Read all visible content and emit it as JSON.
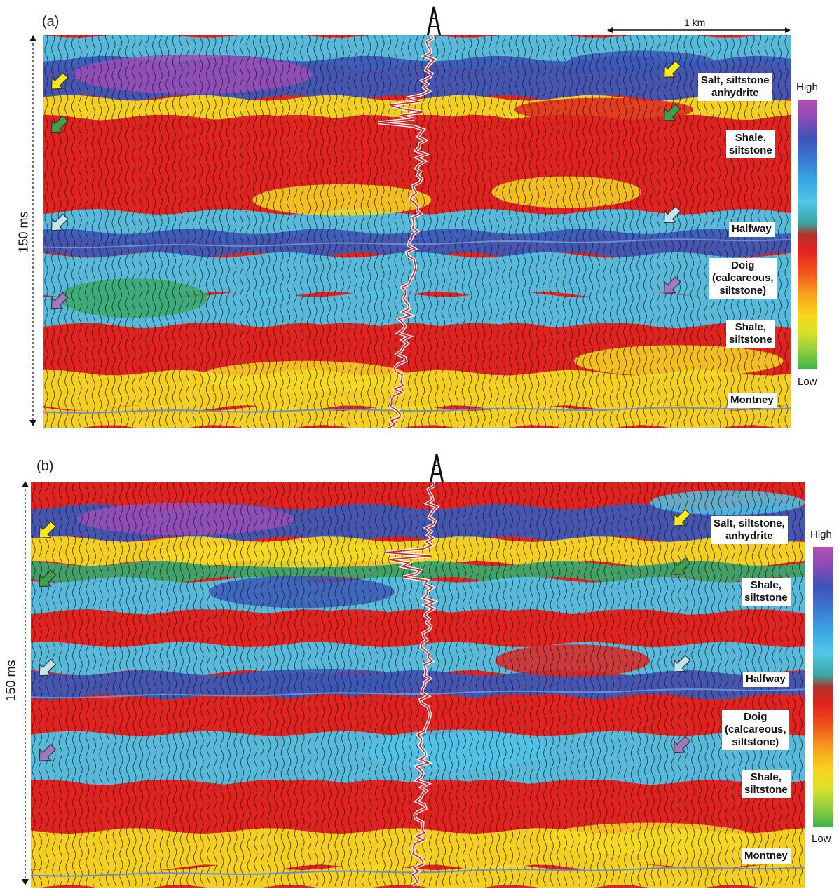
{
  "panels": [
    {
      "label": "(a)",
      "time_label": "150 ms",
      "scale_label": "1 km",
      "formations": [
        {
          "id": "salt",
          "text": "Salt, siltstone\nanhydrite"
        },
        {
          "id": "shale1",
          "text": "Shale,\nsiltstone"
        },
        {
          "id": "halfway",
          "text": "Halfway"
        },
        {
          "id": "doig",
          "text": "Doig\n(calcareous,\nsiltstone)"
        },
        {
          "id": "shale2",
          "text": "Shale,\nsiltstone"
        },
        {
          "id": "montney",
          "text": "Montney"
        }
      ],
      "colorbar": {
        "high": "High",
        "low": "Low"
      }
    },
    {
      "label": "(b)",
      "time_label": "150 ms",
      "formations": [
        {
          "id": "salt",
          "text": "Salt, siltstone,\nanhydrite"
        },
        {
          "id": "shale1",
          "text": "Shale,\nsiltstone"
        },
        {
          "id": "halfway",
          "text": "Halfway"
        },
        {
          "id": "doig",
          "text": "Doig\n(calcareous,\nsiltstone)"
        },
        {
          "id": "shale2",
          "text": "Shale,\nsiltstone"
        },
        {
          "id": "montney",
          "text": "Montney"
        }
      ],
      "colorbar": {
        "high": "High",
        "low": "Low"
      }
    }
  ],
  "arrow_colors": [
    "#f6ea1a",
    "#3fa24a",
    "#bfe6ee",
    "#a07ac0"
  ],
  "colors": {
    "red": "#e2231f",
    "cyan": "#4fc3e6",
    "blue": "#3c58b8",
    "purple": "#9c4eb8",
    "yellow": "#f6d91f",
    "green": "#3aa86a",
    "well_log": "#e1212b",
    "horizon": "#6a8fcf"
  },
  "icons": [
    "drill-rig-icon",
    "arrow-icon"
  ]
}
